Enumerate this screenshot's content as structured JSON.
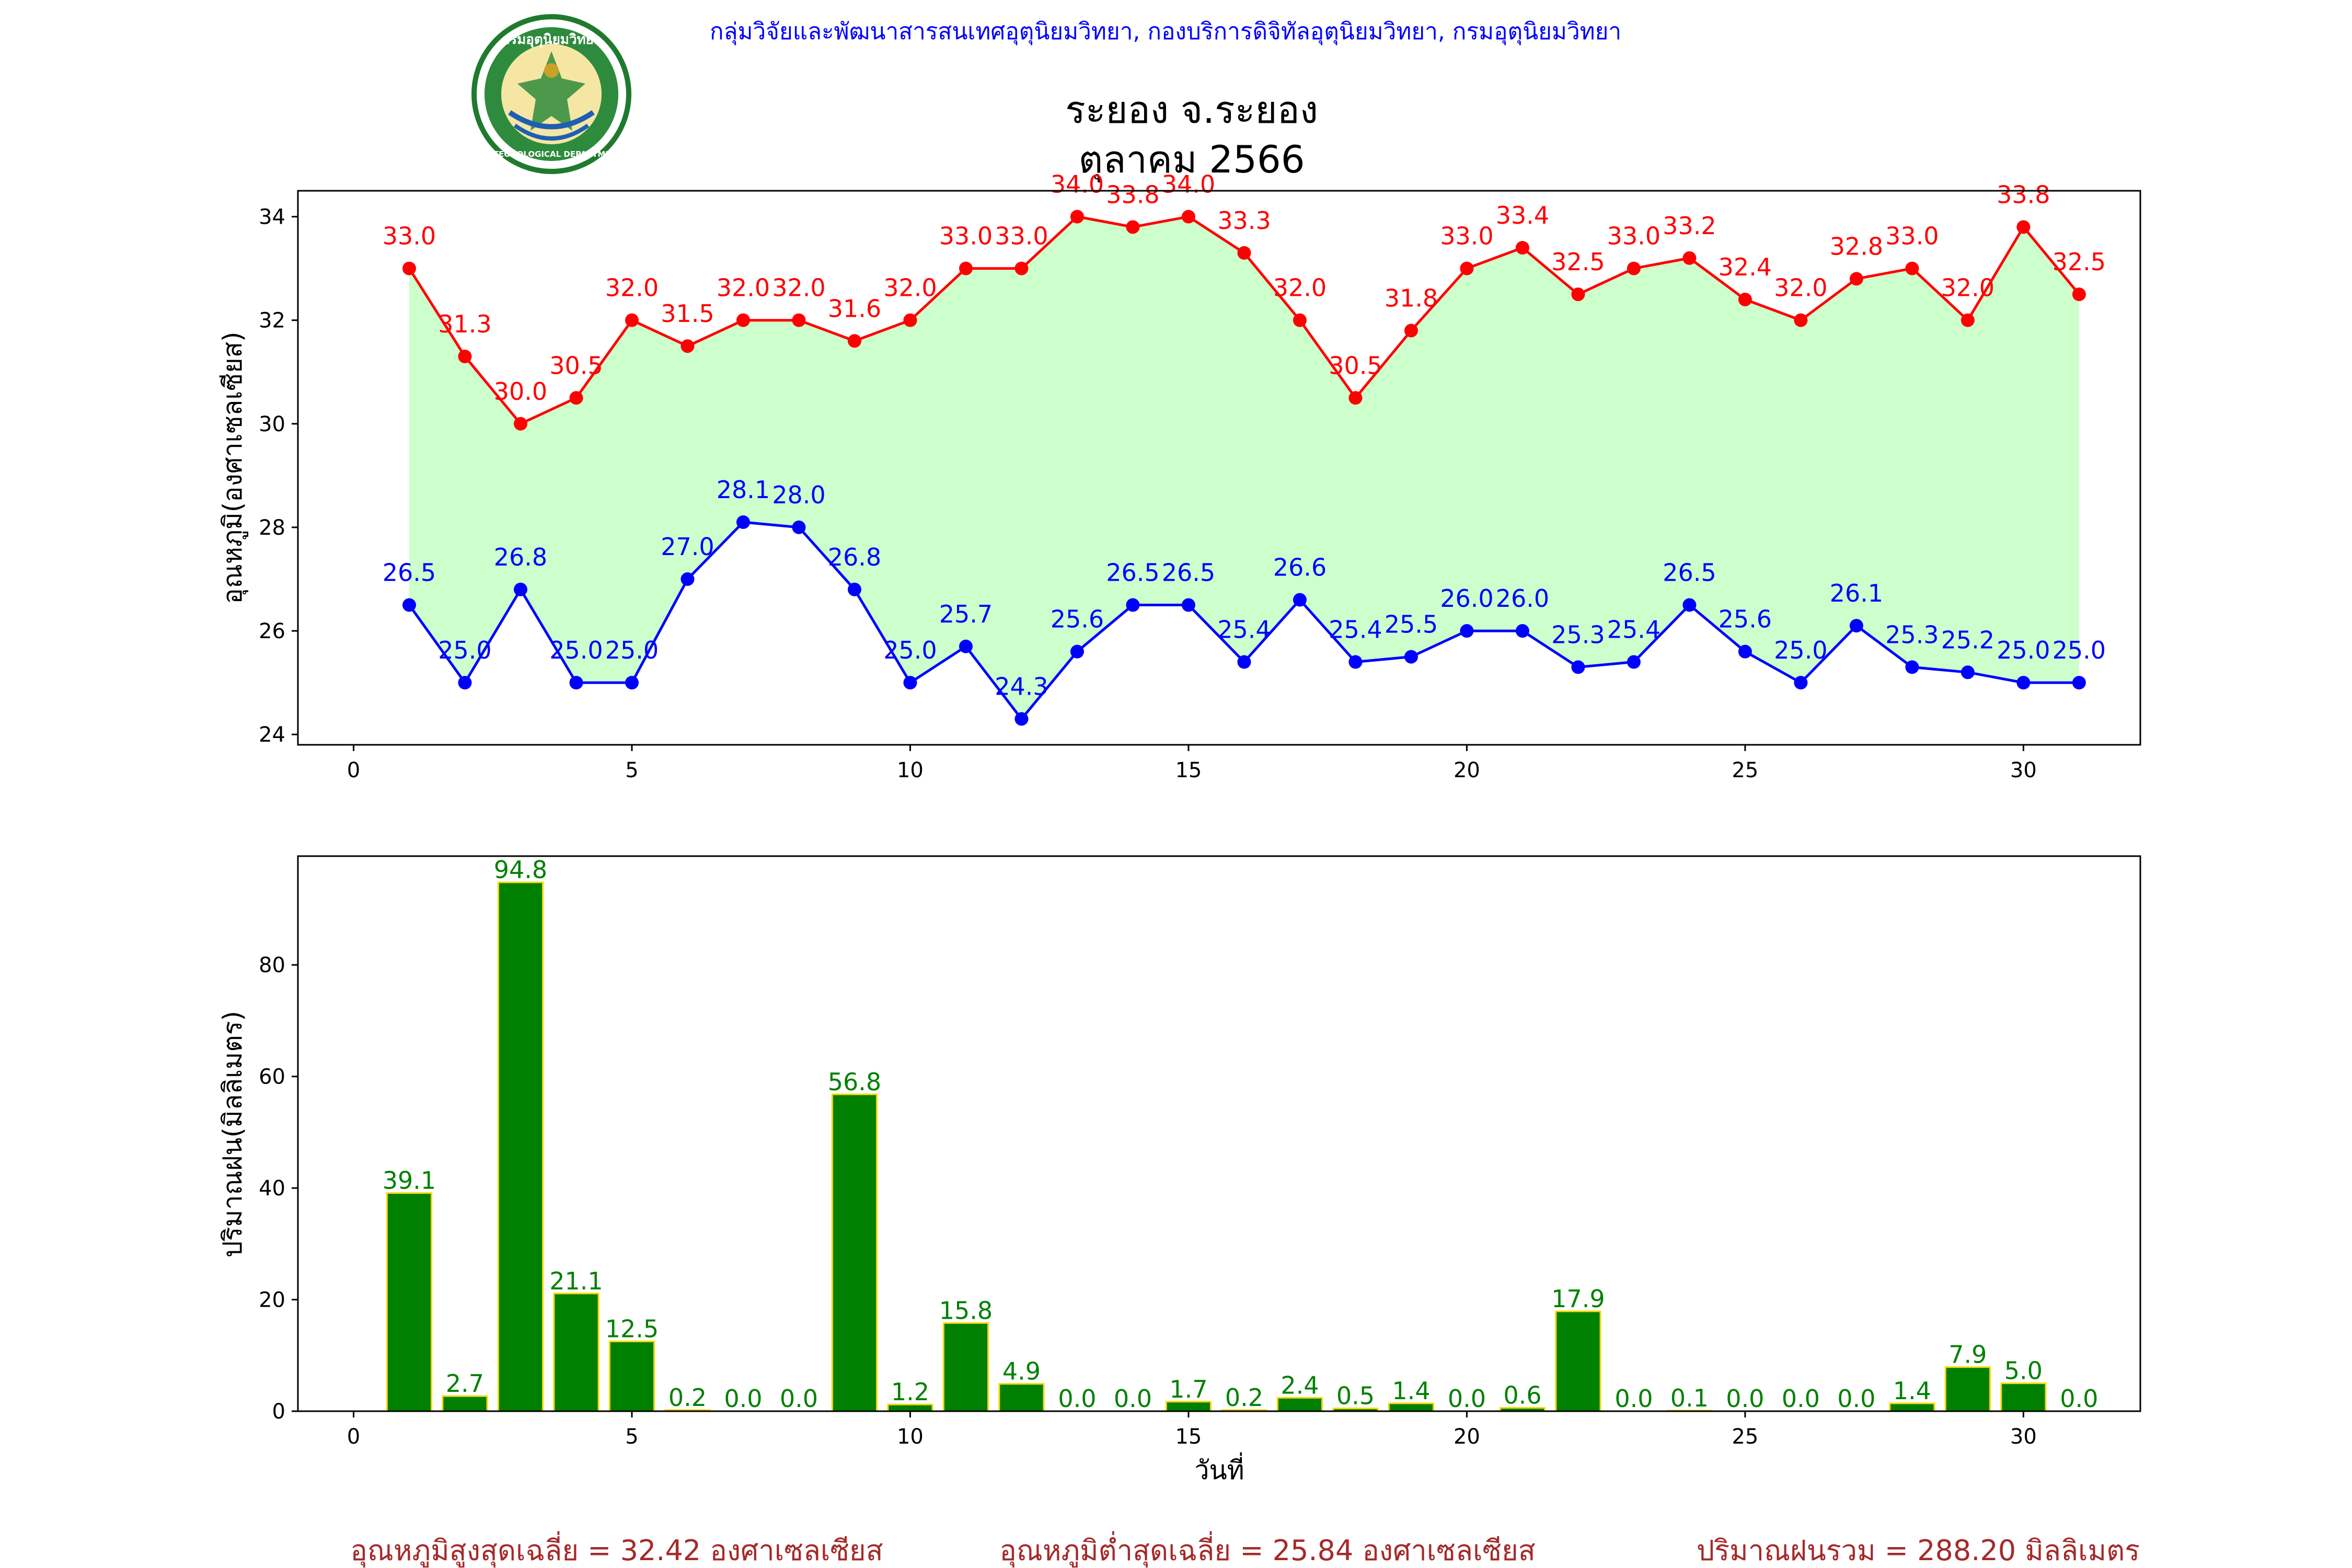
{
  "header": {
    "agency_line": "กลุ่มวิจัยและพัฒนาสารสนเทศอุตุนิยมวิทยา, กองบริการดิจิทัลอุตุนิยมวิทยา, กรมอุตุนิยมวิทยา",
    "logo_text": "กรมอุตุนิยมวิทยา",
    "logo_subtext": "METEOROLOGICAL DEPARTMENT",
    "title_station": "ระยอง จ.ระยอง",
    "title_period": "ตุลาคม 2566"
  },
  "colors": {
    "agency_line": "#0000ff",
    "tmax": "#ff0000",
    "tmin": "#0000ff",
    "fill_between": "#ccffcc",
    "rain_bar": "#008000",
    "rain_edge": "#ffd700",
    "rain_label": "#008000",
    "footer_text": "#a52a2a"
  },
  "chart_data": [
    {
      "type": "line",
      "ylabel": "อุณหภูมิ(องศาเซลเซียส)",
      "xlabel": "",
      "xlim": [
        -1,
        32.1
      ],
      "ylim": [
        23.8,
        34.5
      ],
      "xticks": [
        0,
        5,
        10,
        15,
        20,
        25,
        30
      ],
      "yticks": [
        24,
        26,
        28,
        30,
        32,
        34
      ],
      "grid": false,
      "fill_between": true,
      "x": [
        1,
        2,
        3,
        4,
        5,
        6,
        7,
        8,
        9,
        10,
        11,
        12,
        13,
        14,
        15,
        16,
        17,
        18,
        19,
        20,
        21,
        22,
        23,
        24,
        25,
        26,
        27,
        28,
        29,
        30,
        31
      ],
      "series": [
        {
          "key": "tmax",
          "values": [
            33.0,
            31.3,
            30.0,
            30.5,
            32.0,
            31.5,
            32.0,
            32.0,
            31.6,
            32.0,
            33.0,
            33.0,
            34.0,
            33.8,
            34.0,
            33.3,
            32.0,
            30.5,
            31.8,
            33.0,
            33.4,
            32.5,
            33.0,
            33.2,
            32.4,
            32.0,
            32.8,
            33.0,
            32.0,
            33.8,
            32.5
          ]
        },
        {
          "key": "tmin",
          "values": [
            26.5,
            25.0,
            26.8,
            25.0,
            25.0,
            27.0,
            28.1,
            28.0,
            26.8,
            25.0,
            25.7,
            24.3,
            25.6,
            26.5,
            26.5,
            25.4,
            26.6,
            25.4,
            25.5,
            26.0,
            26.0,
            25.3,
            25.4,
            26.5,
            25.6,
            25.0,
            26.1,
            25.3,
            25.2,
            25.0,
            25.0
          ]
        }
      ]
    },
    {
      "type": "bar",
      "ylabel": "ปริมาณฝน(มิลลิเมตร)",
      "xlabel": "วันที่",
      "xlim": [
        -1,
        32.1
      ],
      "ylim": [
        0,
        99.5
      ],
      "xticks": [
        0,
        5,
        10,
        15,
        20,
        25,
        30
      ],
      "yticks": [
        0,
        20,
        40,
        60,
        80
      ],
      "grid": false,
      "x": [
        1,
        2,
        3,
        4,
        5,
        6,
        7,
        8,
        9,
        10,
        11,
        12,
        13,
        14,
        15,
        16,
        17,
        18,
        19,
        20,
        21,
        22,
        23,
        24,
        25,
        26,
        27,
        28,
        29,
        30,
        31
      ],
      "values": [
        39.1,
        2.7,
        94.8,
        21.1,
        12.5,
        0.2,
        0.0,
        0.0,
        56.8,
        1.2,
        15.8,
        4.9,
        0.0,
        0.0,
        1.7,
        0.2,
        2.4,
        0.5,
        1.4,
        0.0,
        0.6,
        17.9,
        0.0,
        0.1,
        0.0,
        0.0,
        0.0,
        1.4,
        7.9,
        5.0,
        0.0
      ]
    }
  ],
  "footer": {
    "avg_max": "อุณหภูมิสูงสุดเฉลี่ย = 32.42 องศาเซลเซียส",
    "avg_min": "อุณหภูมิต่ำสุดเฉลี่ย = 25.84 องศาเซลเซียส",
    "rain_total": "ปริมาณฝนรวม = 288.20 มิลลิเมตร"
  }
}
